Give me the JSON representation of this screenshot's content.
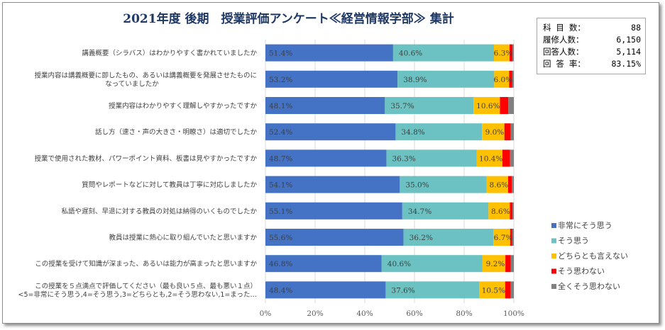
{
  "title": "2021年度 後期　授業評価アンケート≪経営情報学部≫ 集計",
  "stats": [
    {
      "label": "科 目 数：",
      "value": "88"
    },
    {
      "label": "履修人数：",
      "value": "6,150"
    },
    {
      "label": "回答人数：",
      "value": "5,114"
    },
    {
      "label": "回 答 率：",
      "value": "83.15%"
    }
  ],
  "colors": {
    "very_agree": "#4472c4",
    "agree": "#6cc2c2",
    "neutral": "#ffc000",
    "disagree": "#ff0000",
    "strongly_disagree": "#808080",
    "grid": "#d9d9d9",
    "title": "#1f3864"
  },
  "chart_data": {
    "type": "bar",
    "orientation": "horizontal",
    "stacked": "percent",
    "title": "2021年度 後期　授業評価アンケート≪経営情報学部≫ 集計",
    "xlabel": "",
    "ylabel": "",
    "xlim": [
      0,
      100
    ],
    "x_ticks": [
      "0%",
      "20%",
      "40%",
      "60%",
      "80%",
      "100%"
    ],
    "grid": true,
    "legend_position": "right",
    "categories": [
      [
        "講義概要（シラバス）はわかりやすく書かれていましたか"
      ],
      [
        "授業内容は講義概要に即したもの、あるいは講義概要を発展させたものに",
        "なっていましたか"
      ],
      [
        "授業内容はわかりやすく理解しやすかったですか"
      ],
      [
        "話し方（速さ・声の大きさ・明瞭さ）は適切でしたか"
      ],
      [
        "授業で使用された教材、パワーポイント資料、板書は見やすかったですか"
      ],
      [
        "質問やレポートなどに対して教員は丁寧に対応しましたか"
      ],
      [
        "私語や遅刻、早退に対する教員の対処は納得のいくものでしたか"
      ],
      [
        "教員は授業に熱心に取り組んでいたと思いますか"
      ],
      [
        "この授業を受けて知識が深まった、あるいは能力が高まったと思いますか"
      ],
      [
        "この授業を５点満点で評価してください（最も良い５点、最も悪い１点）",
        "<5=非常にそう思う,4=そう思う,3=どちらとも,2=そう思わない,1=まった…"
      ]
    ],
    "series": [
      {
        "name": "非常にそう思う",
        "color_key": "very_agree",
        "values": [
          51.4,
          53.2,
          48.1,
          52.4,
          48.7,
          54.1,
          55.1,
          55.6,
          46.8,
          48.4
        ],
        "labels": [
          "51.4%",
          "53.2%",
          "48.1%",
          "52.4%",
          "48.7%",
          "54.1%",
          "55.1%",
          "55.6%",
          "46.8%",
          "48.4%"
        ]
      },
      {
        "name": "そう思う",
        "color_key": "agree",
        "values": [
          40.6,
          38.9,
          35.7,
          34.8,
          36.3,
          35.0,
          34.7,
          36.2,
          40.6,
          37.6
        ],
        "labels": [
          "40.6%",
          "38.9%",
          "35.7%",
          "34.8%",
          "36.3%",
          "35.0%",
          "34.7%",
          "36.2%",
          "40.6%",
          "37.6%"
        ]
      },
      {
        "name": "どちらとも言えない",
        "color_key": "neutral",
        "values": [
          6.3,
          6.0,
          10.6,
          9.0,
          10.4,
          8.6,
          8.6,
          6.7,
          9.2,
          10.5
        ],
        "labels": [
          "6.3%",
          "6.0%",
          "10.6%",
          "9.0%",
          "10.4%",
          "8.6%",
          "8.6%",
          "6.7%",
          "9.2%",
          "10.5%"
        ]
      },
      {
        "name": "そう思わない",
        "color_key": "disagree",
        "values": [
          1.2,
          1.3,
          3.4,
          2.5,
          3.1,
          1.5,
          1.1,
          0.9,
          2.2,
          2.2
        ],
        "labels": []
      },
      {
        "name": "全くそう思わない",
        "color_key": "strongly_disagree",
        "values": [
          0.5,
          0.6,
          2.2,
          1.3,
          1.5,
          0.8,
          0.5,
          0.6,
          1.2,
          1.3
        ],
        "labels": []
      }
    ]
  }
}
